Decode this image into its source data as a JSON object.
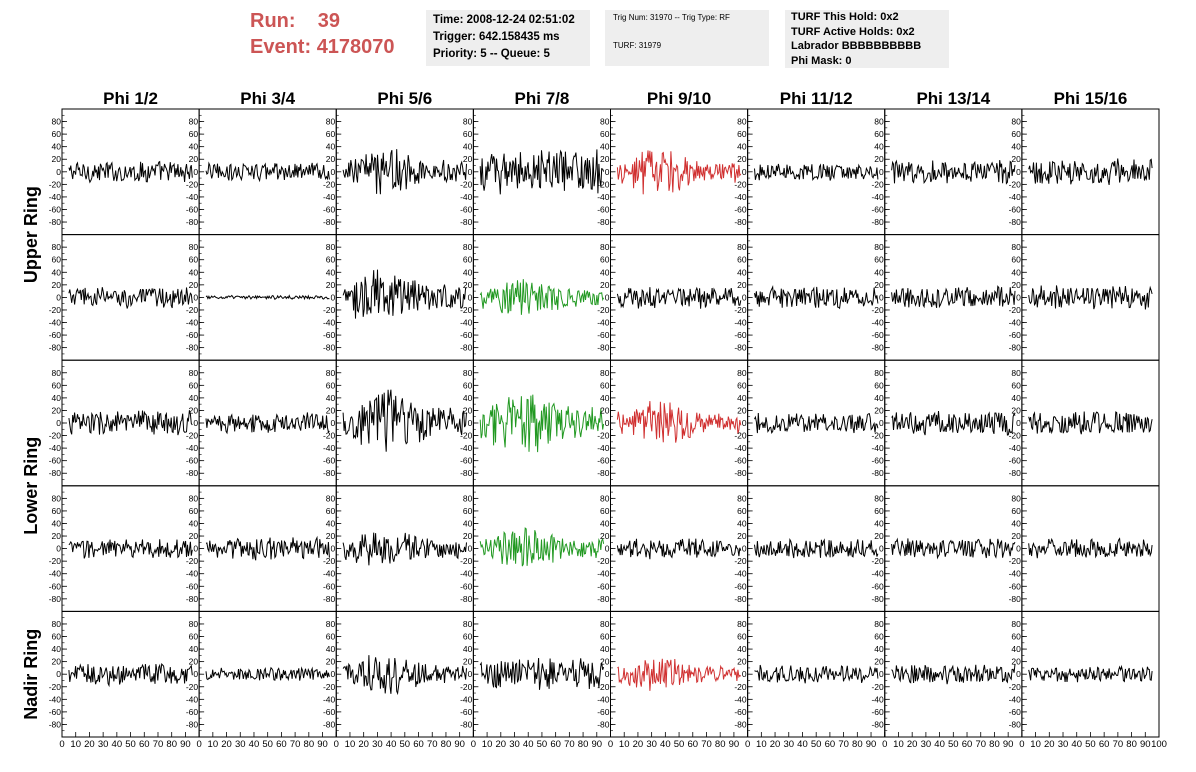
{
  "header": {
    "run_label": "Run:",
    "run_value": "39",
    "event_label": "Event:",
    "event_value": "4178070",
    "time_line": "Time: 2008-12-24 02:51:02",
    "trigger_line": "Trigger: 642.158435 ms",
    "priority_line": "Priority: 5 -- Queue: 5",
    "trig_line": "Trig Num: 31970 -- Trig Type: RF",
    "turf_line": "TURF: 31979",
    "hold_line": "TURF This Hold: 0x2",
    "active_line": "TURF Active Holds: 0x2",
    "labrador_line": "Labrador BBBBBBBBBB",
    "phimask_line": "Phi Mask: 0"
  },
  "colors": {
    "normal": "#000000",
    "red": "#d03030",
    "green": "#229922",
    "title_red": "#cc5555"
  },
  "chart_data": {
    "type": "line",
    "columns": [
      "Phi 1/2",
      "Phi 3/4",
      "Phi 5/6",
      "Phi 7/8",
      "Phi 9/10",
      "Phi 11/12",
      "Phi 13/14",
      "Phi 15/16"
    ],
    "row_groups": [
      "Upper Ring",
      "Lower Ring",
      "Nadir Ring"
    ],
    "rows": 5,
    "ylim": [
      -100,
      100
    ],
    "yticks": [
      80,
      60,
      40,
      20,
      0,
      -20,
      -40,
      -60,
      -80
    ],
    "xlim": [
      0,
      100
    ],
    "xticks": [
      0,
      10,
      20,
      30,
      40,
      50,
      60,
      70,
      80,
      90,
      100
    ],
    "highlights": [
      {
        "row": 0,
        "col": 4,
        "color": "red"
      },
      {
        "row": 1,
        "col": 3,
        "color": "green"
      },
      {
        "row": 2,
        "col": 3,
        "color": "green"
      },
      {
        "row": 2,
        "col": 4,
        "color": "red"
      },
      {
        "row": 3,
        "col": 3,
        "color": "green"
      },
      {
        "row": 4,
        "col": 4,
        "color": "red"
      }
    ],
    "amplitudes": [
      [
        12,
        10,
        20,
        24,
        20,
        9,
        13,
        15
      ],
      [
        12,
        2,
        25,
        18,
        12,
        12,
        12,
        13
      ],
      [
        14,
        11,
        28,
        27,
        18,
        11,
        13,
        13
      ],
      [
        11,
        13,
        17,
        18,
        11,
        11,
        11,
        11
      ],
      [
        12,
        7,
        17,
        17,
        14,
        10,
        11,
        9
      ]
    ]
  }
}
